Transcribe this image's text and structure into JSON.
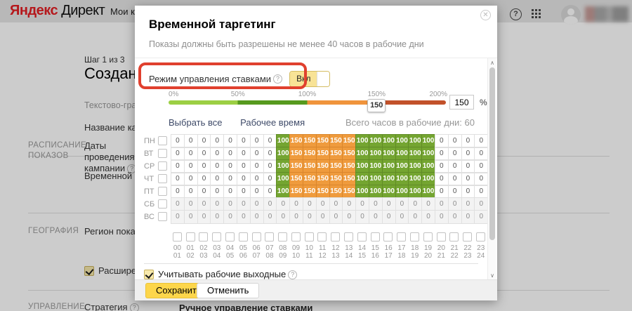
{
  "topbar": {
    "logo_primary": "Яндекс",
    "logo_secondary": "Директ",
    "nav_item": "Мои кампании"
  },
  "page": {
    "step": "Шаг 1 из 3",
    "heading": "Создание",
    "subheading": "Текстово-графич",
    "campaign_name_label": "Название кампан",
    "sections": [
      {
        "title": "РАСПИСАНИЕ ПОКАЗОВ",
        "fields": [
          "Даты проведения кампании",
          "Временной тарге"
        ]
      },
      {
        "title": "ГЕОГРАФИЯ",
        "fields": [
          "Регион показов"
        ]
      },
      {
        "title": "УПРАВЛЕНИЕ",
        "fields": [
          "Стратегия"
        ]
      }
    ],
    "extended_checkbox_label": "Расширенный",
    "strategy_value": "Ручное управление ставками"
  },
  "modal": {
    "title": "Временной таргетинг",
    "subtitle": "Показы должны быть разрешены не менее 40 часов в рабочие дни",
    "bid_mode": {
      "label": "Режим управления ставками",
      "toggle_label": "Вкл",
      "state": "on"
    },
    "slider": {
      "labels": [
        "0%",
        "50%",
        "100%",
        "150%",
        "200%"
      ],
      "handle_value": "150",
      "input_value": "150",
      "unit": "%"
    },
    "links": {
      "select_all": "Выбрать все",
      "working_time": "Рабочее время"
    },
    "total_hours": "Всего часов в рабочие дни: 60",
    "grid": {
      "days": [
        {
          "label": "ПН",
          "weekend": false,
          "cells": [
            "0",
            "0",
            "0",
            "0",
            "0",
            "0",
            "0",
            "0",
            "100",
            "150",
            "150",
            "150",
            "150",
            "150",
            "100",
            "100",
            "100",
            "100",
            "100",
            "100",
            "0",
            "0",
            "0",
            "0"
          ]
        },
        {
          "label": "ВТ",
          "weekend": false,
          "cells": [
            "0",
            "0",
            "0",
            "0",
            "0",
            "0",
            "0",
            "0",
            "100",
            "150",
            "150",
            "150",
            "150",
            "150",
            "100",
            "100",
            "100",
            "100",
            "100",
            "100",
            "0",
            "0",
            "0",
            "0"
          ]
        },
        {
          "label": "СР",
          "weekend": false,
          "cells": [
            "0",
            "0",
            "0",
            "0",
            "0",
            "0",
            "0",
            "0",
            "100",
            "150",
            "150",
            "150",
            "150",
            "150",
            "100",
            "100",
            "100",
            "100",
            "100",
            "100",
            "0",
            "0",
            "0",
            "0"
          ]
        },
        {
          "label": "ЧТ",
          "weekend": false,
          "cells": [
            "0",
            "0",
            "0",
            "0",
            "0",
            "0",
            "0",
            "0",
            "100",
            "150",
            "150",
            "150",
            "150",
            "150",
            "100",
            "100",
            "100",
            "100",
            "100",
            "100",
            "0",
            "0",
            "0",
            "0"
          ]
        },
        {
          "label": "ПТ",
          "weekend": false,
          "cells": [
            "0",
            "0",
            "0",
            "0",
            "0",
            "0",
            "0",
            "0",
            "100",
            "150",
            "150",
            "150",
            "150",
            "150",
            "100",
            "100",
            "100",
            "100",
            "100",
            "100",
            "0",
            "0",
            "0",
            "0"
          ]
        },
        {
          "label": "СБ",
          "weekend": true,
          "cells": [
            "0",
            "0",
            "0",
            "0",
            "0",
            "0",
            "0",
            "0",
            "0",
            "0",
            "0",
            "0",
            "0",
            "0",
            "0",
            "0",
            "0",
            "0",
            "0",
            "0",
            "0",
            "0",
            "0",
            "0"
          ]
        },
        {
          "label": "ВС",
          "weekend": true,
          "cells": [
            "0",
            "0",
            "0",
            "0",
            "0",
            "0",
            "0",
            "0",
            "0",
            "0",
            "0",
            "0",
            "0",
            "0",
            "0",
            "0",
            "0",
            "0",
            "0",
            "0",
            "0",
            "0",
            "0",
            "0"
          ]
        }
      ],
      "hours": [
        [
          "00",
          "01"
        ],
        [
          "01",
          "02"
        ],
        [
          "02",
          "03"
        ],
        [
          "03",
          "04"
        ],
        [
          "04",
          "05"
        ],
        [
          "05",
          "06"
        ],
        [
          "06",
          "07"
        ],
        [
          "07",
          "08"
        ],
        [
          "08",
          "09"
        ],
        [
          "09",
          "10"
        ],
        [
          "10",
          "11"
        ],
        [
          "11",
          "12"
        ],
        [
          "12",
          "13"
        ],
        [
          "13",
          "14"
        ],
        [
          "14",
          "15"
        ],
        [
          "15",
          "16"
        ],
        [
          "16",
          "17"
        ],
        [
          "17",
          "18"
        ],
        [
          "18",
          "19"
        ],
        [
          "19",
          "20"
        ],
        [
          "20",
          "21"
        ],
        [
          "21",
          "22"
        ],
        [
          "22",
          "23"
        ],
        [
          "23",
          "24"
        ]
      ]
    },
    "weekend_checkbox_label": "Учитывать рабочие выходные",
    "save_label": "Сохранить",
    "cancel_label": "Отменить"
  },
  "colors": {
    "accent_yellow": "#fdd64b",
    "cell_green": "#74a531",
    "cell_orange": "#ef9b3d",
    "annotation_red": "#e0402e",
    "slider_segments": [
      "#9ccf44",
      "#569a1e",
      "#f0943c",
      "#c2512a"
    ]
  }
}
